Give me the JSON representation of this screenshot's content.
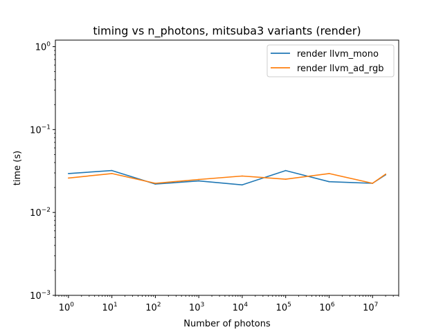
{
  "chart_data": {
    "type": "line",
    "title": "timing vs n_photons, mitsuba3 variants (render)",
    "xlabel": "Number of photons",
    "ylabel": "time (s)",
    "xscale": "log",
    "yscale": "log",
    "xlim": [
      0.5,
      40000000
    ],
    "ylim": [
      0.001,
      1.2
    ],
    "grid": false,
    "legend_position": "top-right",
    "x_ticks": [
      {
        "value": 1,
        "base": "10",
        "exp": "0"
      },
      {
        "value": 10,
        "base": "10",
        "exp": "1"
      },
      {
        "value": 100,
        "base": "10",
        "exp": "2"
      },
      {
        "value": 1000,
        "base": "10",
        "exp": "3"
      },
      {
        "value": 10000,
        "base": "10",
        "exp": "4"
      },
      {
        "value": 100000,
        "base": "10",
        "exp": "5"
      },
      {
        "value": 1000000,
        "base": "10",
        "exp": "6"
      },
      {
        "value": 10000000,
        "base": "10",
        "exp": "7"
      }
    ],
    "y_ticks": [
      {
        "value": 0.001,
        "base": "10",
        "exp": "−3"
      },
      {
        "value": 0.01,
        "base": "10",
        "exp": "−2"
      },
      {
        "value": 0.1,
        "base": "10",
        "exp": "−1"
      },
      {
        "value": 1,
        "base": "10",
        "exp": "0"
      }
    ],
    "series": [
      {
        "name": "render llvm_mono",
        "color": "#1f77b4",
        "x": [
          1,
          10,
          100,
          1000,
          10000,
          100000,
          1000000,
          10000000,
          20000000
        ],
        "values": [
          0.0295,
          0.032,
          0.022,
          0.024,
          0.0215,
          0.032,
          0.0235,
          0.0225,
          0.0285
        ]
      },
      {
        "name": "render llvm_ad_rgb",
        "color": "#ff7f0e",
        "x": [
          1,
          10,
          100,
          1000,
          10000,
          100000,
          1000000,
          10000000,
          20000000
        ],
        "values": [
          0.026,
          0.0295,
          0.0225,
          0.025,
          0.0275,
          0.0252,
          0.0295,
          0.0225,
          0.029
        ]
      }
    ]
  }
}
